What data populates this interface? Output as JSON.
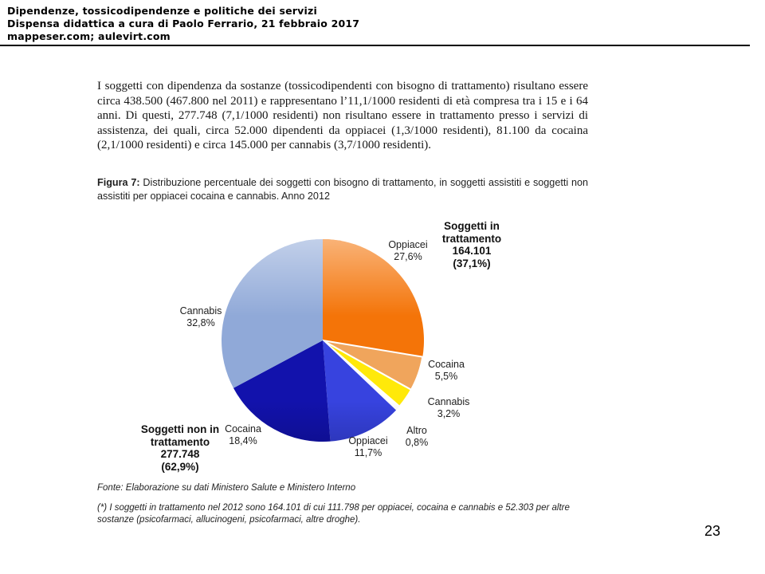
{
  "header": {
    "line1": "Dipendenze, tossicodipendenze e politiche dei servizi",
    "line2": "Dispensa didattica a cura di Paolo Ferrario, 21 febbraio 2017",
    "line3": "mappeser.com; aulevirt.com"
  },
  "document": {
    "paragraph": "I soggetti con dipendenza da sostanze (tossicodipendenti con bisogno di trattamento) risultano essere circa 438.500 (467.800 nel 2011) e rappresentano l’11,1/1000 residenti di età compresa tra i 15 e i 64 anni. Di questi, 277.748 (7,1/1000 residenti) non risultano essere in trattamento presso i servizi di assistenza, dei quali, circa 52.000 dipendenti da oppiacei (1,3/1000 residenti), 81.100 da cocaina (2,1/1000 residenti) e circa 145.000 per cannabis (3,7/1000 residenti).",
    "figure_label": "Figura 7:",
    "figure_caption": " Distribuzione percentuale dei soggetti con bisogno di trattamento, in soggetti assistiti e soggetti non assistiti per oppiacei cocaina e cannabis. Anno 2012",
    "fonte": "Fonte: Elaborazione su dati Ministero Salute e Ministero Interno",
    "footnote": "(*) I soggetti in trattamento nel 2012 sono 164.101 di cui 111.798 per oppiacei, cocaina e cannabis e 52.303 per altre sostanze (psicofarmaci, allucinogeni, psicofarmaci, altre droghe)."
  },
  "page_number": "23",
  "chart_data": {
    "type": "pie",
    "title": "Distribuzione percentuale dei soggetti con bisogno di trattamento, in soggetti assistiti e soggetti non assistiti per oppiacei cocaina e cannabis. Anno 2012",
    "start_angle_deg": 0,
    "direction": "clockwise",
    "slices": [
      {
        "label": "Oppiacei",
        "value": 27.6,
        "display": "27,6%",
        "group": "Soggetti in trattamento",
        "color": "#F47408"
      },
      {
        "label": "Cocaina",
        "value": 5.5,
        "display": "5,5%",
        "group": "Soggetti in trattamento",
        "color": "#F0A55C"
      },
      {
        "label": "Cannabis",
        "value": 3.2,
        "display": "3,2%",
        "group": "Soggetti in trattamento",
        "color": "#FFE90A"
      },
      {
        "label": "Altro",
        "value": 0.8,
        "display": "0,8%",
        "group": "Soggetti in trattamento",
        "color": "#FFFFFF"
      },
      {
        "label": "Oppiacei",
        "value": 11.7,
        "display": "11,7%",
        "group": "Soggetti non in trattamento",
        "color": "#3743DF"
      },
      {
        "label": "Cocaina",
        "value": 18.4,
        "display": "18,4%",
        "group": "Soggetti non in trattamento",
        "color": "#1212AC"
      },
      {
        "label": "Cannabis",
        "value": 32.8,
        "display": "32,8%",
        "group": "Soggetti non in trattamento",
        "color": "#90A9D8"
      }
    ],
    "groups": [
      {
        "name": "Soggetti in trattamento",
        "annotation": "Soggetti in\ntrattamento\n164.101\n(37,1%)"
      },
      {
        "name": "Soggetti non in trattamento",
        "annotation": "Soggetti non in\ntrattamento\n277.748\n(62,9%)"
      }
    ]
  }
}
